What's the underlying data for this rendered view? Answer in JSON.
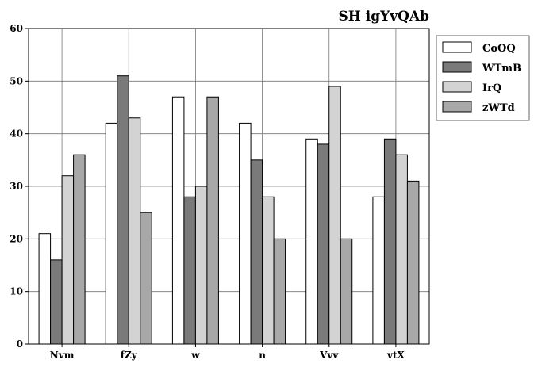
{
  "chart_data": {
    "type": "bar",
    "title": "SH igYvQAb",
    "xlabel": "",
    "ylabel": "",
    "categories": [
      "Nvm",
      "fZy",
      "w",
      "n",
      "Vvv",
      "vtX"
    ],
    "series": [
      {
        "name": "CoOQ",
        "color": "#ffffff",
        "values": [
          21,
          42,
          47,
          42,
          39,
          28
        ]
      },
      {
        "name": "WTmB",
        "color": "#7a7a7a",
        "values": [
          16,
          51,
          28,
          35,
          38,
          39
        ]
      },
      {
        "name": "IrQ",
        "color": "#d3d3d3",
        "values": [
          32,
          43,
          30,
          28,
          49,
          36
        ]
      },
      {
        "name": "zWTd",
        "color": "#a8a8a8",
        "values": [
          36,
          25,
          47,
          20,
          20,
          31
        ]
      }
    ],
    "ylim": [
      0,
      60
    ],
    "yticks": [
      0,
      10,
      20,
      30,
      40,
      50,
      60
    ],
    "grid": true,
    "legend": "upper right, outside plot"
  }
}
